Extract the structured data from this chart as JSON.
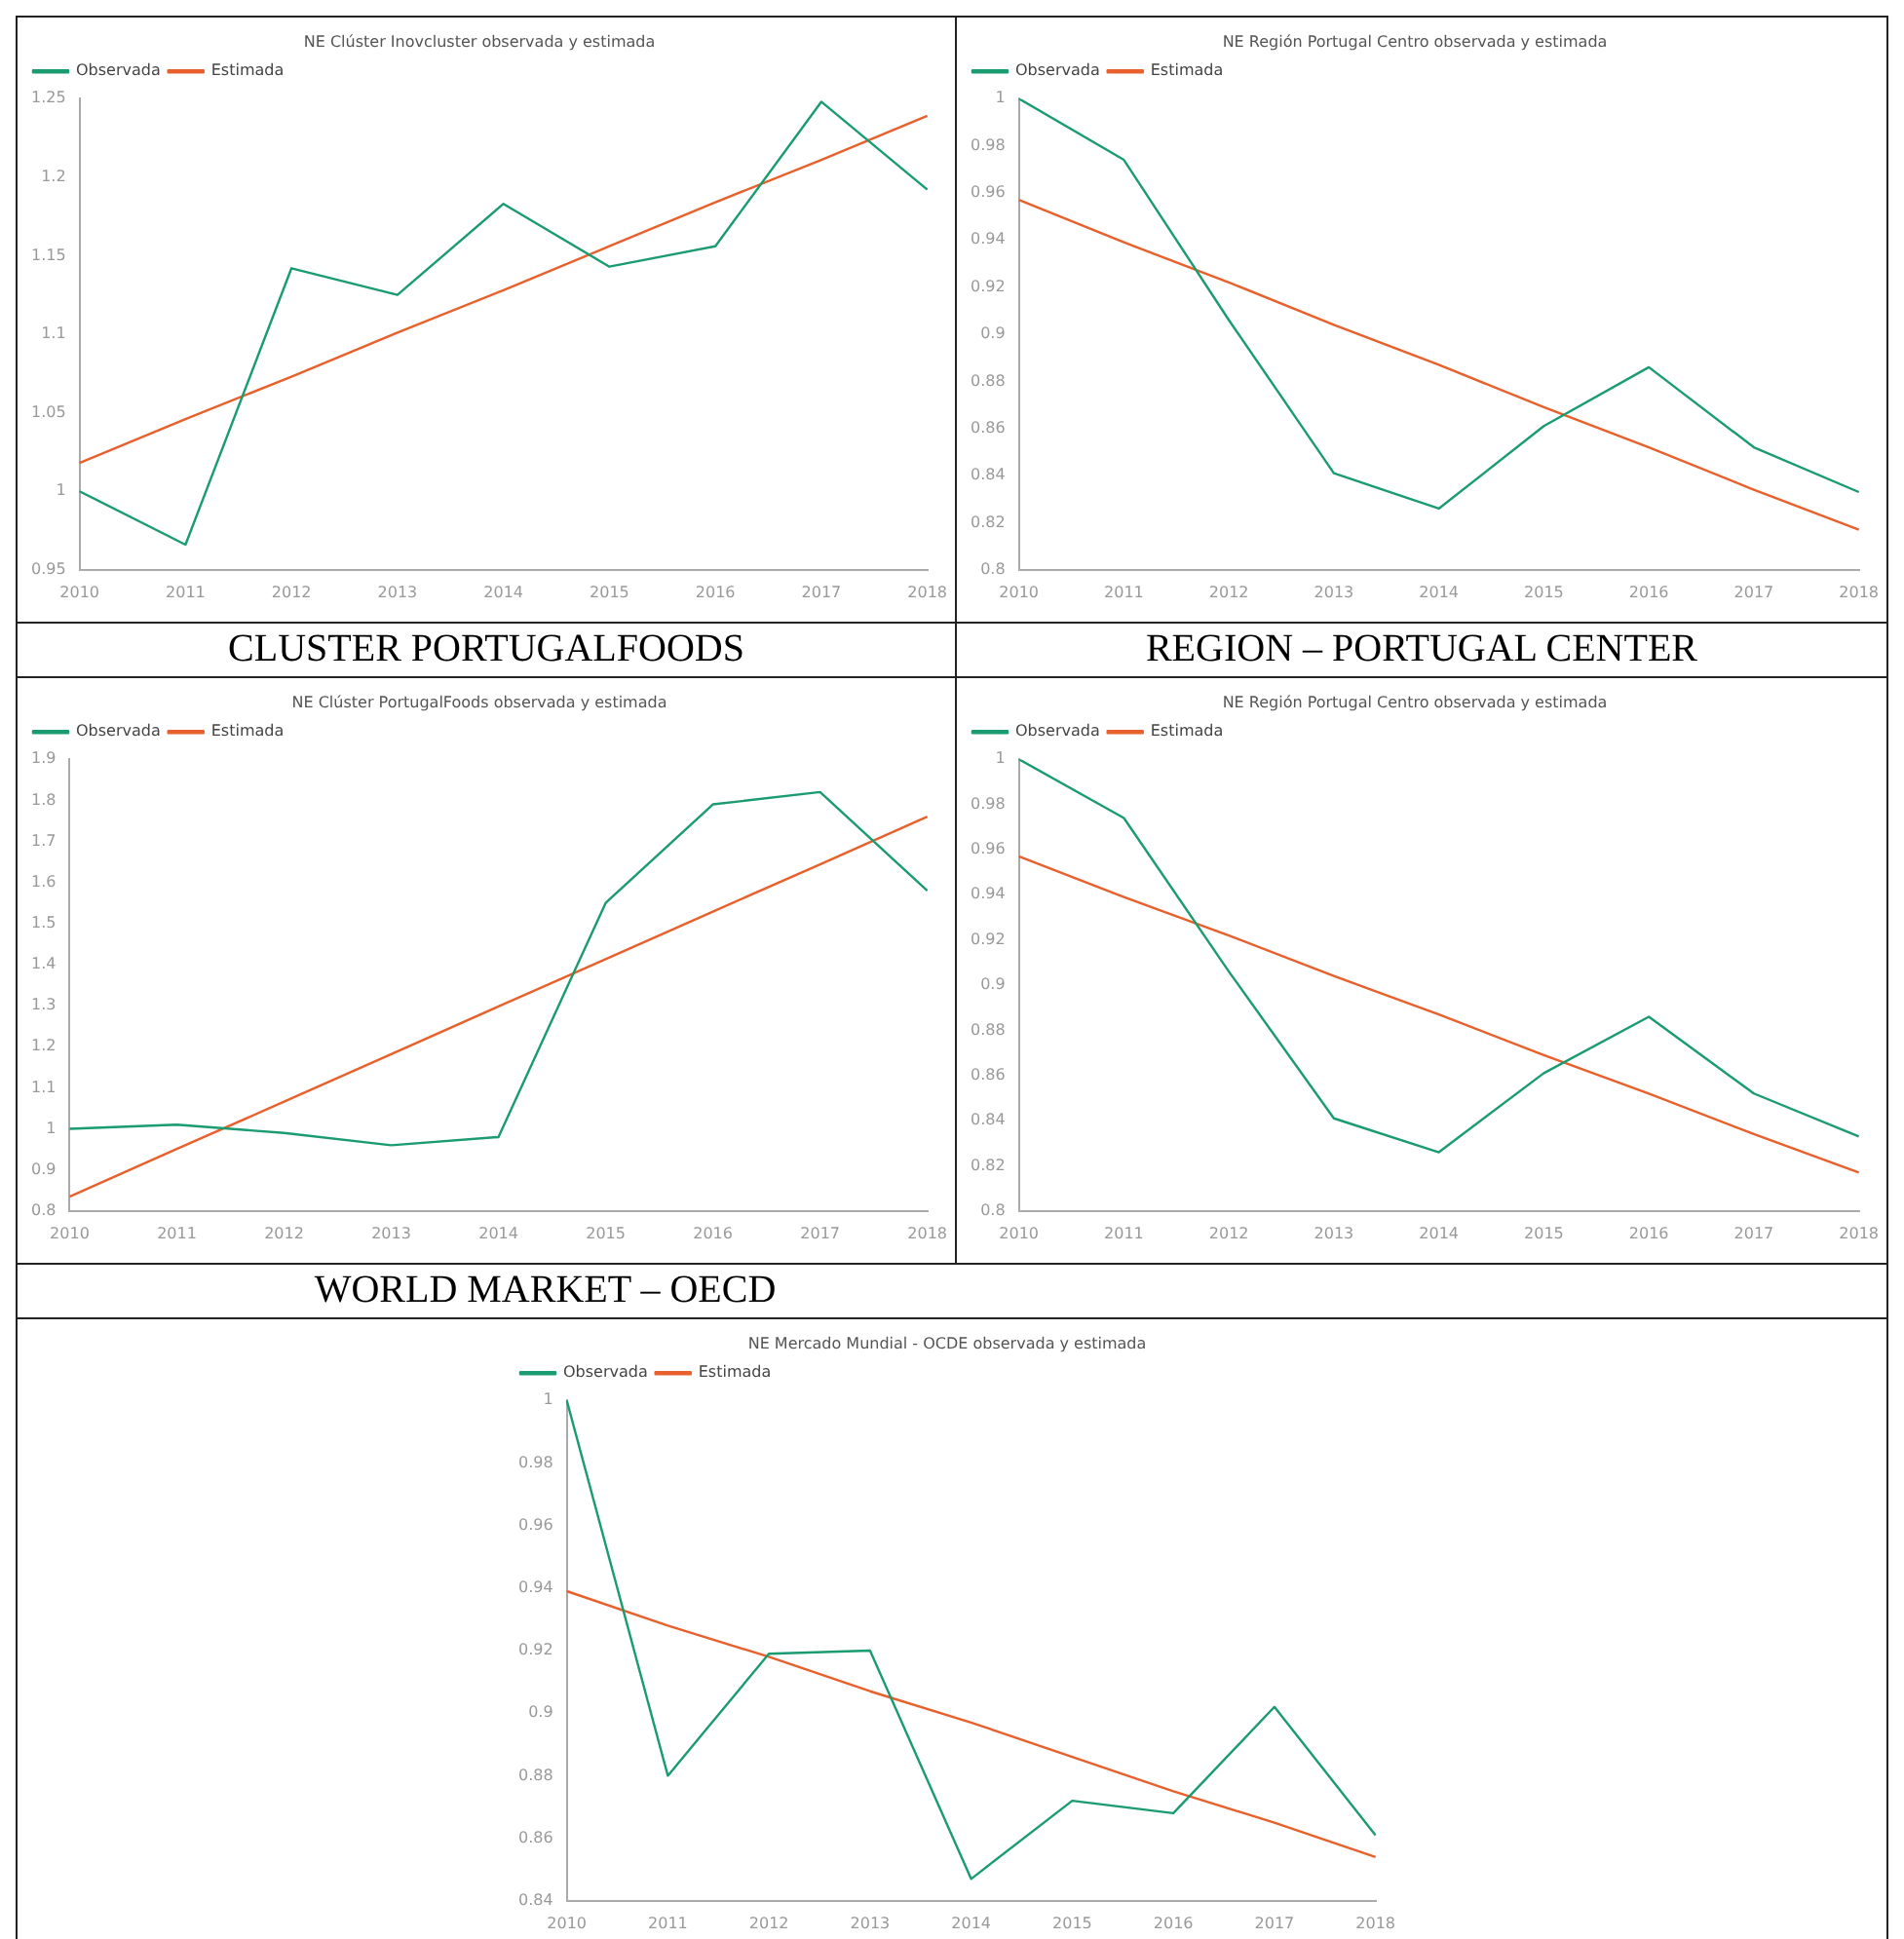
{
  "chart_data": [
    {
      "type": "line",
      "title": "NE Clúster Inovcluster observada y estimada",
      "categories": [
        "2010",
        "2011",
        "2012",
        "2013",
        "2014",
        "2015",
        "2016",
        "2017",
        "2018"
      ],
      "series": [
        {
          "name": "Observada",
          "color": "#1a9b70",
          "values": [
            1.0,
            0.966,
            1.142,
            1.125,
            1.183,
            1.143,
            1.156,
            1.248,
            1.192
          ]
        },
        {
          "name": "Estimada",
          "color": "#e8602c",
          "values": [
            1.018,
            1.046,
            1.073,
            1.101,
            1.128,
            1.156,
            1.184,
            1.211,
            1.239
          ]
        }
      ],
      "ylim": [
        0.95,
        1.25
      ],
      "yticks": [
        0.95,
        1,
        1.05,
        1.1,
        1.15,
        1.2,
        1.25
      ],
      "grid": false,
      "legend": "top left",
      "marker": "none",
      "line_style": "solid",
      "annotations": [
        "CLUSTER PORTUGALFOODS"
      ]
    },
    {
      "type": "line",
      "title": "NE Región Portugal Centro observada y estimada",
      "categories": [
        "2010",
        "2011",
        "2012",
        "2013",
        "2014",
        "2015",
        "2016",
        "2017",
        "2018"
      ],
      "series": [
        {
          "name": "Observada",
          "color": "#1a9b70",
          "values": [
            1.0,
            0.974,
            0.906,
            0.841,
            0.826,
            0.861,
            0.886,
            0.852,
            0.833
          ]
        },
        {
          "name": "Estimada",
          "color": "#e8602c",
          "values": [
            0.957,
            0.939,
            0.922,
            0.904,
            0.887,
            0.869,
            0.852,
            0.834,
            0.817
          ]
        }
      ],
      "ylim": [
        0.8,
        1
      ],
      "yticks": [
        0.8,
        0.82,
        0.84,
        0.86,
        0.88,
        0.9,
        0.92,
        0.94,
        0.96,
        0.98,
        1
      ],
      "grid": false,
      "legend": "top left",
      "marker": "none",
      "line_style": "solid",
      "annotations": [
        "REGION – PORTUGAL CENTER"
      ]
    },
    {
      "type": "line",
      "title": "NE Clúster PortugalFoods observada y estimada",
      "categories": [
        "2010",
        "2011",
        "2012",
        "2013",
        "2014",
        "2015",
        "2016",
        "2017",
        "2018"
      ],
      "series": [
        {
          "name": "Observada",
          "color": "#1a9b70",
          "values": [
            1.0,
            1.01,
            0.99,
            0.96,
            0.98,
            1.55,
            1.79,
            1.82,
            1.58
          ]
        },
        {
          "name": "Estimada",
          "color": "#e8602c",
          "values": [
            0.835,
            0.951,
            1.066,
            1.182,
            1.298,
            1.413,
            1.529,
            1.644,
            1.76
          ]
        }
      ],
      "ylim": [
        0.8,
        1.9
      ],
      "yticks": [
        0.8,
        0.9,
        1,
        1.1,
        1.2,
        1.3,
        1.4,
        1.5,
        1.6,
        1.7,
        1.8,
        1.9
      ],
      "grid": false,
      "legend": "top left",
      "marker": "none",
      "line_style": "solid",
      "annotations": [
        "WORLD MARKET – OECD"
      ]
    },
    {
      "type": "line",
      "title": "NE Región Portugal Centro observada y estimada",
      "categories": [
        "2010",
        "2011",
        "2012",
        "2013",
        "2014",
        "2015",
        "2016",
        "2017",
        "2018"
      ],
      "series": [
        {
          "name": "Observada",
          "color": "#1a9b70",
          "values": [
            1.0,
            0.974,
            0.906,
            0.841,
            0.826,
            0.861,
            0.886,
            0.852,
            0.833
          ]
        },
        {
          "name": "Estimada",
          "color": "#e8602c",
          "values": [
            0.957,
            0.939,
            0.922,
            0.904,
            0.887,
            0.869,
            0.852,
            0.834,
            0.817
          ]
        }
      ],
      "ylim": [
        0.8,
        1
      ],
      "yticks": [
        0.8,
        0.82,
        0.84,
        0.86,
        0.88,
        0.9,
        0.92,
        0.94,
        0.96,
        0.98,
        1
      ],
      "grid": false,
      "legend": "top left",
      "marker": "none",
      "line_style": "solid"
    },
    {
      "type": "line",
      "title": "NE Mercado Mundial - OCDE observada y estimada",
      "categories": [
        "2010",
        "2011",
        "2012",
        "2013",
        "2014",
        "2015",
        "2016",
        "2017",
        "2018"
      ],
      "series": [
        {
          "name": "Observada",
          "color": "#1a9b70",
          "values": [
            1.0,
            0.88,
            0.919,
            0.92,
            0.847,
            0.872,
            0.868,
            0.902,
            0.861
          ]
        },
        {
          "name": "Estimada",
          "color": "#e8602c",
          "values": [
            0.939,
            0.928,
            0.918,
            0.907,
            0.897,
            0.886,
            0.875,
            0.865,
            0.854
          ]
        }
      ],
      "ylim": [
        0.84,
        1
      ],
      "yticks": [
        0.84,
        0.86,
        0.88,
        0.9,
        0.92,
        0.94,
        0.96,
        0.98,
        1
      ],
      "grid": false,
      "legend": "top left",
      "marker": "none",
      "line_style": "solid"
    }
  ]
}
